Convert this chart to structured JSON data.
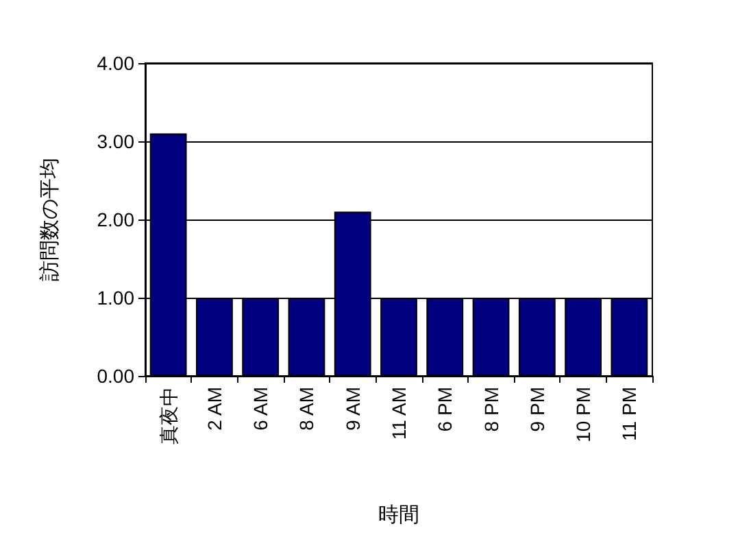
{
  "chart_data": {
    "type": "bar",
    "xlabel": "時間",
    "ylabel": "訪問数の平均",
    "categories": [
      "真夜中",
      "2 AM",
      "6 AM",
      "8 AM",
      "9 AM",
      "11 AM",
      "6 PM",
      "8 PM",
      "9 PM",
      "10 PM",
      "11 PM"
    ],
    "values": [
      3.1,
      1.0,
      1.0,
      1.0,
      2.1,
      1.0,
      1.0,
      1.0,
      1.0,
      1.0,
      1.0
    ],
    "color": "#000080",
    "ylim": [
      0,
      4
    ],
    "yticks": [
      {
        "value": 0,
        "label": "0.00"
      },
      {
        "value": 1,
        "label": "1.00"
      },
      {
        "value": 2,
        "label": "2.00"
      },
      {
        "value": 3,
        "label": "3.00"
      },
      {
        "value": 4,
        "label": "4.00"
      }
    ],
    "grid": "y"
  }
}
